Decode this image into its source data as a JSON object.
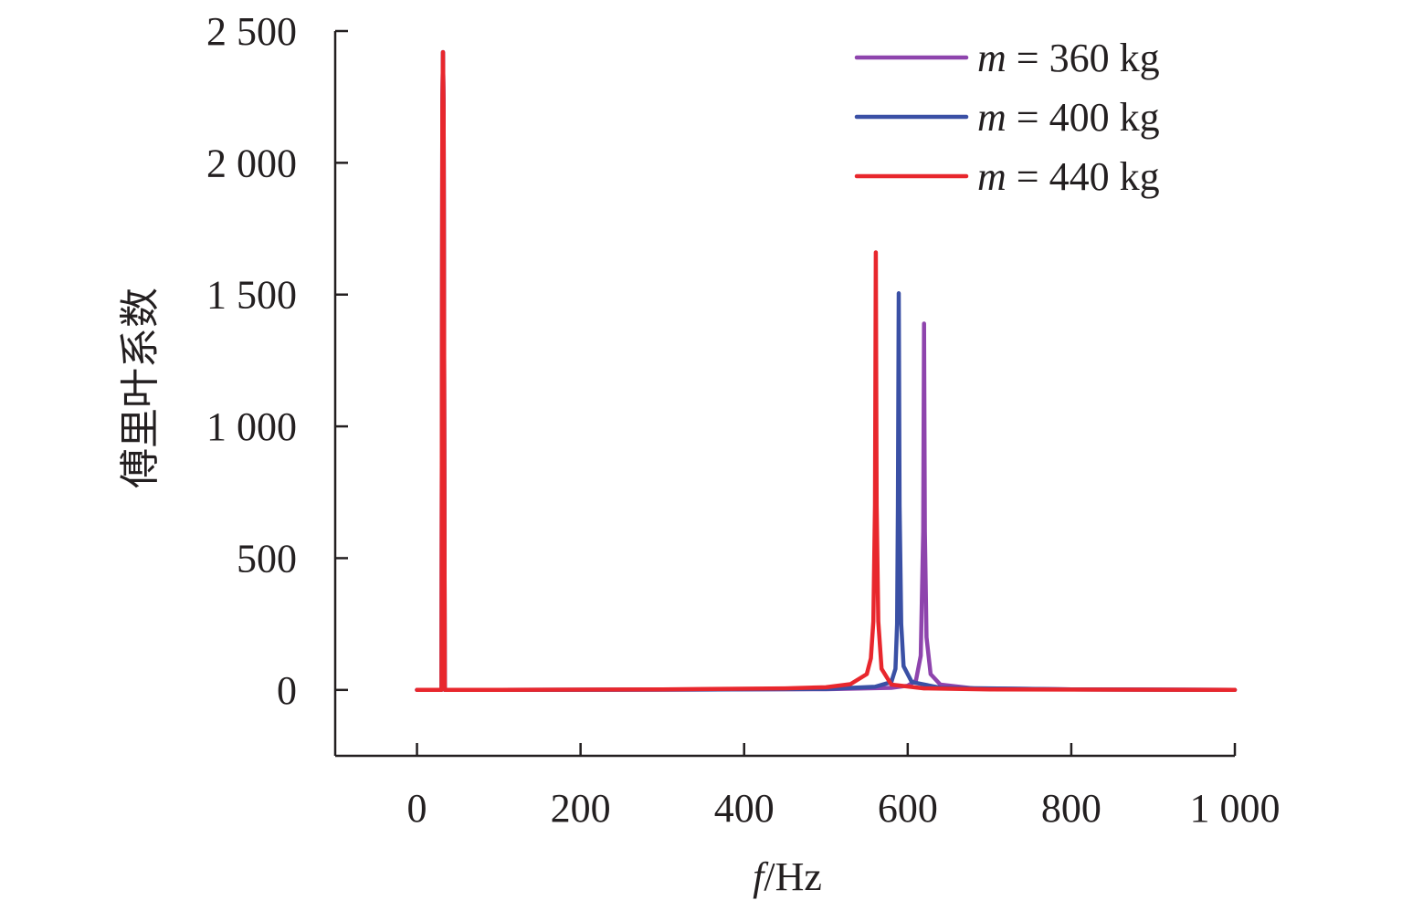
{
  "chart_data": {
    "type": "line",
    "xlabel_italic": "f",
    "xlabel_unit": "/Hz",
    "ylabel": "傅里叶系数",
    "xlim": [
      -100,
      1000
    ],
    "ylim": [
      -250,
      2500
    ],
    "x_ticks": [
      0,
      200,
      400,
      600,
      800,
      1000
    ],
    "x_tick_labels": [
      "0",
      "200",
      "400",
      "600",
      "800",
      "1 000"
    ],
    "y_ticks": [
      0,
      500,
      1000,
      1500,
      2000,
      2500
    ],
    "y_tick_labels": [
      "0",
      "500",
      "1 000",
      "1 500",
      "2 000",
      "2 500"
    ],
    "legend_position": "top-right",
    "series": [
      {
        "name": "m = 360 kg",
        "name_italic": "m",
        "name_rest": " = 360 kg",
        "color": "#8e44ad",
        "x": [
          0,
          30,
          31,
          31.8,
          32.6,
          34,
          100,
          300,
          500,
          580,
          600,
          610,
          616,
          619,
          620,
          621,
          623,
          628,
          640,
          680,
          800,
          1000
        ],
        "y": [
          0,
          0,
          2200,
          2420,
          2200,
          0,
          0,
          1,
          3,
          8,
          16,
          35,
          130,
          600,
          1390,
          600,
          200,
          60,
          20,
          6,
          2,
          0
        ]
      },
      {
        "name": "m = 400 kg",
        "name_italic": "m",
        "name_rest": " = 400 kg",
        "color": "#3a50a5",
        "x": [
          0,
          30,
          31,
          31.8,
          32.6,
          34,
          100,
          300,
          500,
          560,
          580,
          585,
          587,
          588,
          589,
          590,
          592,
          595,
          605,
          640,
          800,
          1000
        ],
        "y": [
          0,
          0,
          2200,
          2420,
          2200,
          0,
          0,
          1,
          4,
          12,
          30,
          80,
          250,
          700,
          1505,
          700,
          250,
          90,
          30,
          8,
          2,
          0
        ]
      },
      {
        "name": "m = 440 kg",
        "name_italic": "m",
        "name_rest": " = 440 kg",
        "color": "#e8272d",
        "x": [
          0,
          30,
          31,
          31.8,
          32.6,
          34,
          100,
          300,
          450,
          500,
          530,
          550,
          555,
          558,
          560,
          561,
          562,
          564,
          568,
          580,
          620,
          700,
          1000
        ],
        "y": [
          0,
          0,
          2200,
          2420,
          2200,
          0,
          0,
          2,
          6,
          10,
          22,
          60,
          120,
          260,
          700,
          1660,
          700,
          260,
          80,
          20,
          6,
          2,
          0
        ]
      }
    ]
  }
}
